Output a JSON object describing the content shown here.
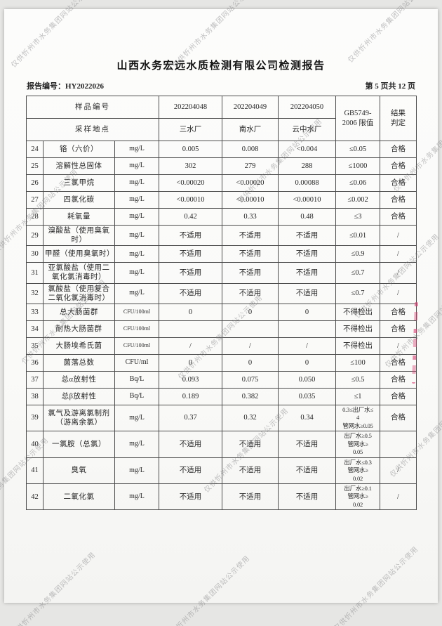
{
  "title": "山西水务宏远水质检测有限公司检测报告",
  "report_no": "报告编号：HY2022026",
  "page_indicator": "第 5 页共 12 页",
  "watermark": "仅供忻州市水务集团网站公示使用",
  "table": {
    "header": {
      "sample_id_label": "样品编号",
      "location_label": "采样地点",
      "sample_ids": [
        "202204048",
        "202204049",
        "202204050"
      ],
      "locations": [
        "三水厂",
        "南水厂",
        "云中水厂"
      ],
      "limit_header": "GB5749-\n2006 限值",
      "result_header": "结果\n判定"
    },
    "rows": [
      {
        "no": "24",
        "name": "铬（六价）",
        "unit": "mg/L",
        "v1": "0.005",
        "v2": "0.008",
        "v3": "<0.004",
        "limit": "≤0.05",
        "result": "合格"
      },
      {
        "no": "25",
        "name": "溶解性总固体",
        "unit": "mg/L",
        "v1": "302",
        "v2": "279",
        "v3": "288",
        "limit": "≤1000",
        "result": "合格"
      },
      {
        "no": "26",
        "name": "三氯甲烷",
        "unit": "mg/L",
        "v1": "<0.00020",
        "v2": "<0.00020",
        "v3": "0.00088",
        "limit": "≤0.06",
        "result": "合格"
      },
      {
        "no": "27",
        "name": "四氯化碳",
        "unit": "mg/L",
        "v1": "<0.00010",
        "v2": "<0.00010",
        "v3": "<0.00010",
        "limit": "≤0.002",
        "result": "合格"
      },
      {
        "no": "28",
        "name": "耗氧量",
        "unit": "mg/L",
        "v1": "0.42",
        "v2": "0.33",
        "v3": "0.48",
        "limit": "≤3",
        "result": "合格"
      },
      {
        "no": "29",
        "name": "溴酸盐（使用臭氧\n时）",
        "unit": "mg/L",
        "v1": "不适用",
        "v2": "不适用",
        "v3": "不适用",
        "limit": "≤0.01",
        "result": "/"
      },
      {
        "no": "30",
        "name": "甲醛（使用臭氧时）",
        "unit": "mg/L",
        "v1": "不适用",
        "v2": "不适用",
        "v3": "不适用",
        "limit": "≤0.9",
        "result": "/"
      },
      {
        "no": "31",
        "name": "亚氯酸盐（使用二\n氧化氯消毒时）",
        "unit": "mg/L",
        "v1": "不适用",
        "v2": "不适用",
        "v3": "不适用",
        "limit": "≤0.7",
        "result": "/"
      },
      {
        "no": "32",
        "name": "氯酸盐（使用复合\n二氧化氯消毒时）",
        "unit": "mg/L",
        "v1": "不适用",
        "v2": "不适用",
        "v3": "不适用",
        "limit": "≤0.7",
        "result": "/"
      },
      {
        "no": "33",
        "name": "总大肠菌群",
        "unit": "CFU/100ml",
        "v1": "0",
        "v2": "0",
        "v3": "0",
        "limit": "不得检出",
        "result": "合格"
      },
      {
        "no": "34",
        "name": "耐热大肠菌群",
        "unit": "CFU/100ml",
        "v1": "",
        "v2": "",
        "v3": "",
        "limit": "不得检出",
        "result": "合格"
      },
      {
        "no": "35",
        "name": "大肠埃希氏菌",
        "unit": "CFU/100ml",
        "v1": "/",
        "v2": "/",
        "v3": "/",
        "limit": "不得检出",
        "result": "/"
      },
      {
        "no": "36",
        "name": "菌落总数",
        "unit": "CFU/ml",
        "v1": "0",
        "v2": "0",
        "v3": "0",
        "limit": "≤100",
        "result": "合格"
      },
      {
        "no": "37",
        "name": "总α放射性",
        "unit": "Bq/L",
        "v1": "0.093",
        "v2": "0.075",
        "v3": "0.050",
        "limit": "≤0.5",
        "result": "合格"
      },
      {
        "no": "38",
        "name": "总β放射性",
        "unit": "Bq/L",
        "v1": "0.189",
        "v2": "0.382",
        "v3": "0.035",
        "limit": "≤1",
        "result": "合格"
      },
      {
        "no": "39",
        "name": "氯气及游离氯制剂\n（游离余氯）",
        "unit": "mg/L",
        "v1": "0.37",
        "v2": "0.32",
        "v3": "0.34",
        "limit": "0.3≤出厂水≤\n4\n管网水≥0.05",
        "result": "合格"
      },
      {
        "no": "40",
        "name": "一氯胺（总氯）",
        "unit": "mg/L",
        "v1": "不适用",
        "v2": "不适用",
        "v3": "不适用",
        "limit": "出厂水≥0.5\n管网水≥\n0.05",
        "result": ""
      },
      {
        "no": "41",
        "name": "臭氧",
        "unit": "mg/L",
        "v1": "不适用",
        "v2": "不适用",
        "v3": "不适用",
        "limit": "出厂水≤0.3\n管网水≥\n0.02",
        "result": "/"
      },
      {
        "no": "42",
        "name": "二氧化氯",
        "unit": "mg/L",
        "v1": "不适用",
        "v2": "不适用",
        "v3": "不适用",
        "limit": "出厂水≥0.1\n管网水≥\n0.02",
        "result": "/"
      }
    ]
  }
}
